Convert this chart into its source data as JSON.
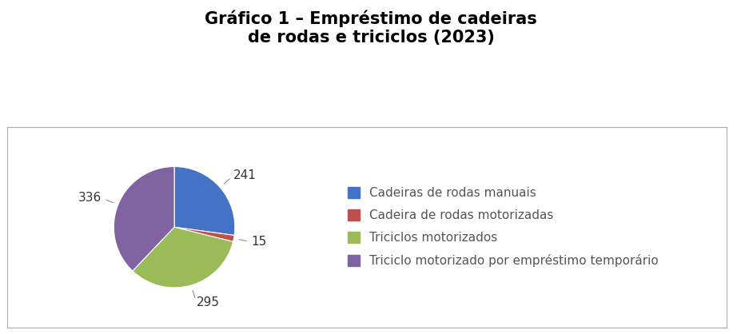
{
  "title": "Gráfico 1 – Empréstimo de cadeiras\nde rodas e triciclos (2023)",
  "values": [
    241,
    15,
    295,
    336
  ],
  "labels": [
    "Cadeiras de rodas manuais",
    "Cadeira de rodas motorizadas",
    "Triciclos motorizados",
    "Triciclo motorizado por empréstimo temporário"
  ],
  "colors": [
    "#4472C4",
    "#C0504D",
    "#9BBB59",
    "#8064A2"
  ],
  "value_labels": [
    "241",
    "15",
    "295",
    "336"
  ],
  "title_fontsize": 15,
  "legend_fontsize": 11,
  "label_fontsize": 11,
  "background_color": "#FFFFFF",
  "startangle": 90
}
